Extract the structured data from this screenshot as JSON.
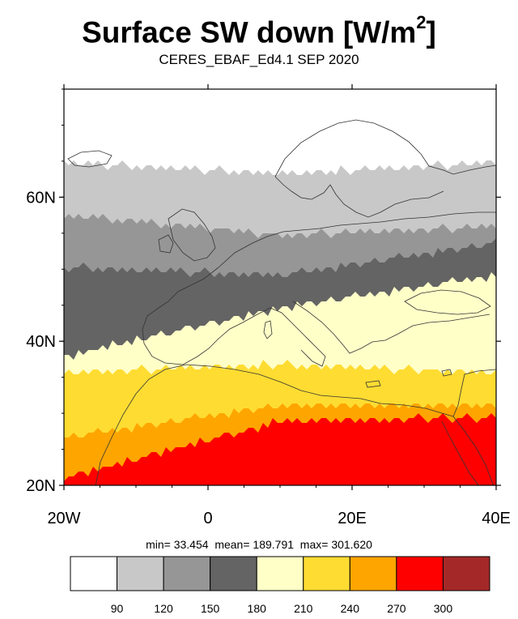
{
  "title_main": "Surface SW down [W/m",
  "title_sup": "2",
  "title_close": "]",
  "subtitle": "CERES_EBAF_Ed4.1 SEP 2020",
  "stats": {
    "min_label": "min=",
    "min": "33.454",
    "mean_label": "mean=",
    "mean": "189.791",
    "max_label": "max=",
    "max": "301.620"
  },
  "map": {
    "lon_range": [
      -20,
      40
    ],
    "lat_range": [
      20,
      75
    ],
    "x_ticks": [
      {
        "value": -20,
        "label": "20W"
      },
      {
        "value": 0,
        "label": "0"
      },
      {
        "value": 20,
        "label": "20E"
      },
      {
        "value": 40,
        "label": "40E"
      }
    ],
    "y_ticks": [
      {
        "value": 20,
        "label": "20N"
      },
      {
        "value": 40,
        "label": "40N"
      },
      {
        "value": 60,
        "label": "60N"
      }
    ]
  },
  "colorbar": {
    "colors": [
      "#ffffff",
      "#c8c8c8",
      "#969696",
      "#646464",
      "#ffffc8",
      "#ffdc32",
      "#ffa500",
      "#ff0000",
      "#a52828"
    ],
    "labels": [
      "90",
      "120",
      "150",
      "180",
      "210",
      "240",
      "270",
      "300"
    ]
  }
}
